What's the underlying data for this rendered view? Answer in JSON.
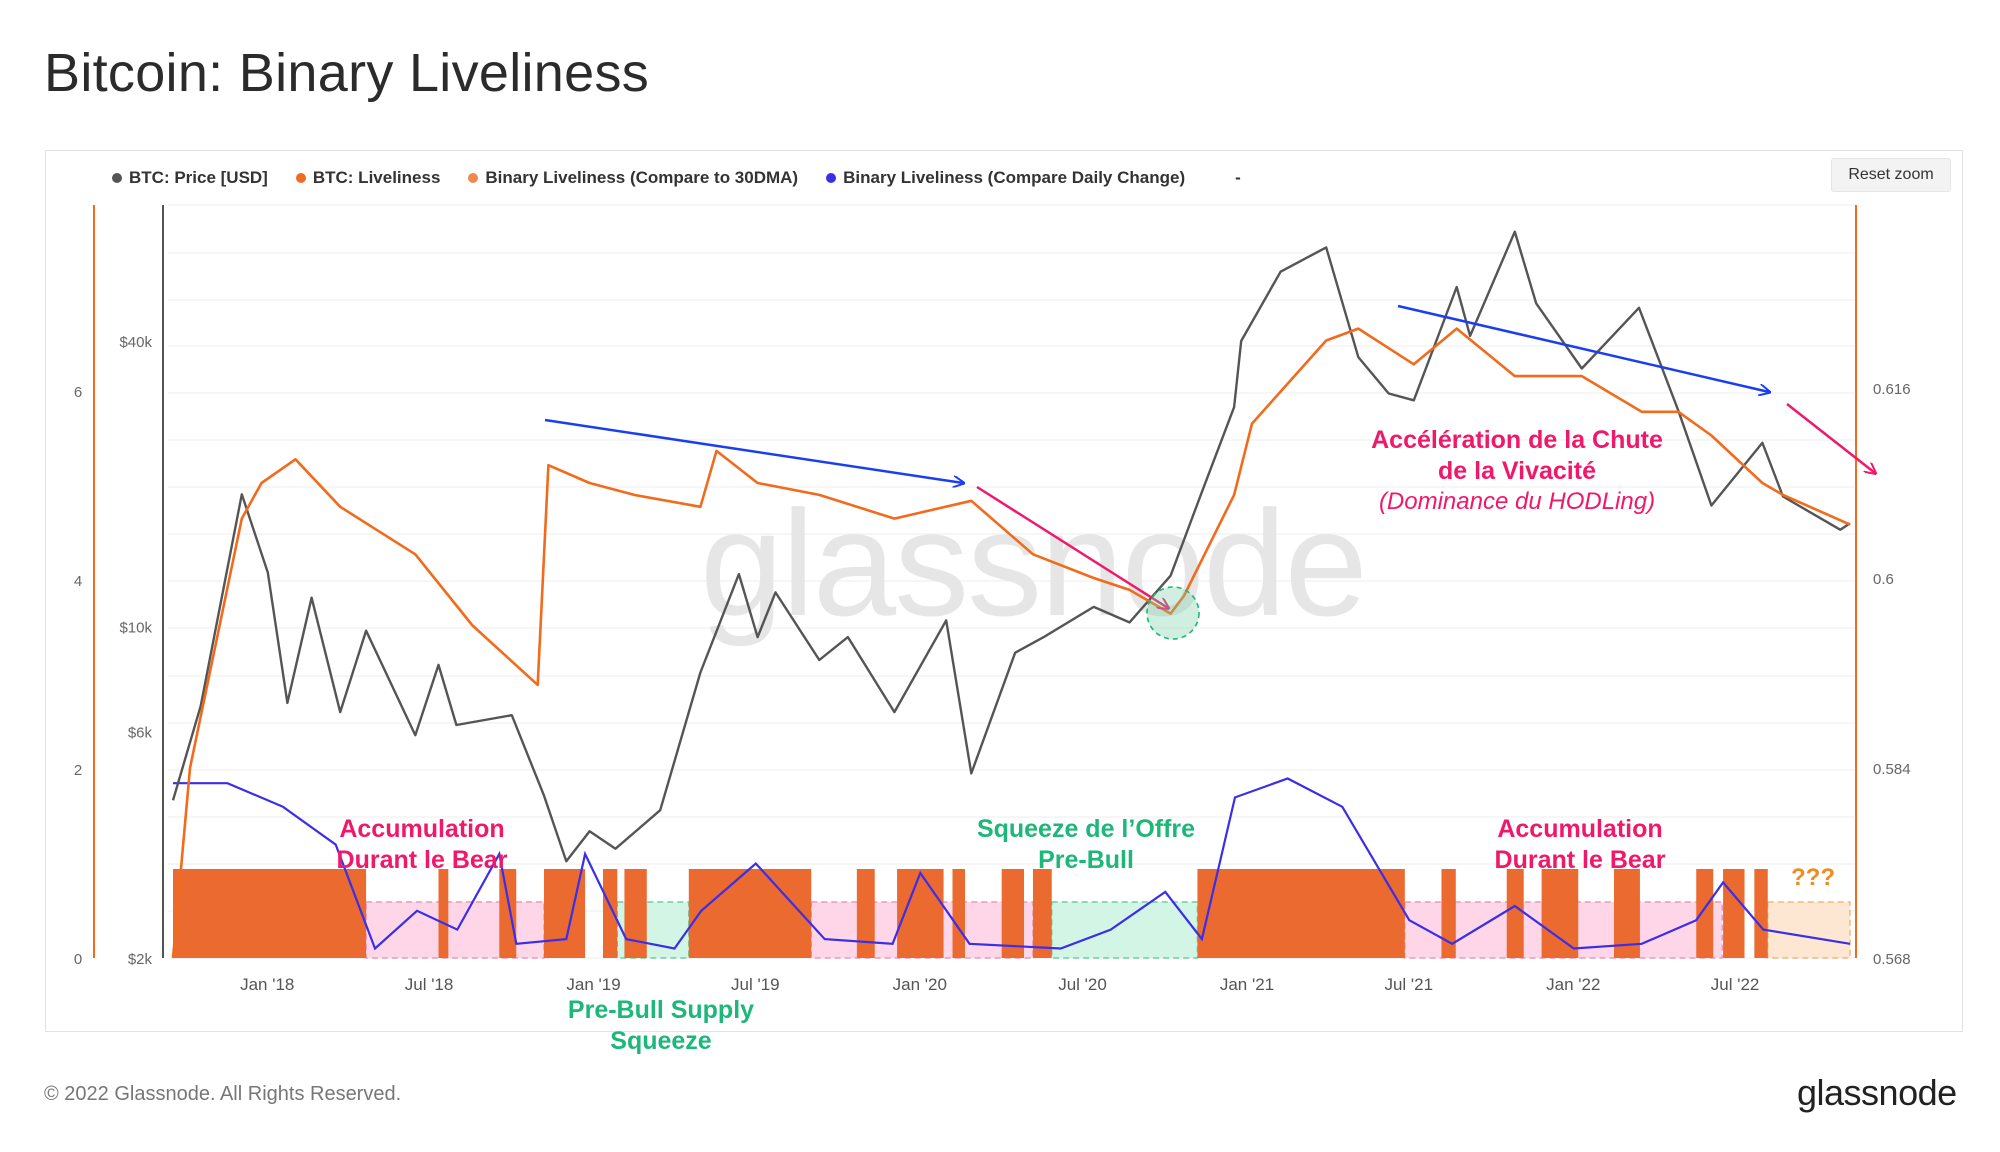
{
  "page": {
    "title": "Bitcoin: Binary Liveliness",
    "footer_copyright": "© 2022 Glassnode. All Rights Reserved.",
    "footer_logo": "glassnode",
    "watermark": "glassnode"
  },
  "toolbar": {
    "reset_zoom_label": "Reset zoom"
  },
  "legend": [
    {
      "label": "BTC: Price [USD]",
      "color": "#555555"
    },
    {
      "label": "BTC: Liveliness",
      "color": "#f26b1d"
    },
    {
      "label": "Binary Liveliness (Compare to 30DMA)",
      "color": "#f0884a"
    },
    {
      "label": "Binary Liveliness (Compare Daily Change)",
      "color": "#3a2ee8"
    },
    {
      "label": "-",
      "color": ""
    }
  ],
  "colors": {
    "price": "#555555",
    "liveliness": "#f26b1d",
    "binary_fill": "#eb6a30",
    "binary_line": "#3a2ee8",
    "accumulation_zone": "#ffd6e8",
    "squeeze_zone": "#d2f5e6",
    "unknown_zone": "#fde7d2",
    "annotation_pink": "#f0186b",
    "annotation_green": "#1db77a",
    "annotation_orange": "#f28a1c",
    "arrow_blue": "#1b3ef0"
  },
  "annotations": {
    "accumulation_1": [
      "Accumulation",
      "Durant le Bear"
    ],
    "pre_bull_squeeze": [
      "Pre-Bull Supply",
      "Squeeze"
    ],
    "squeeze_offre": [
      "Squeeze de l’Offre",
      "Pre-Bull"
    ],
    "acceleration": [
      "Accélération de la Chute",
      "de la Vivacité"
    ],
    "hodl": "(Dominance du HODLing)",
    "accumulation_2": [
      "Accumulation",
      "Durant le Bear"
    ],
    "unknown": "???"
  },
  "chart_data": {
    "type": "line",
    "x_ticks": [
      "Jan '18",
      "Jul '18",
      "Jan '19",
      "Jul '19",
      "Jan '20",
      "Jul '20",
      "Jan '21",
      "Jul '21",
      "Jan '22",
      "Jul '22"
    ],
    "x_range": [
      "2017-10-01",
      "2022-11-20"
    ],
    "y_axes": {
      "far_left": {
        "ticks": [
          "0",
          "2",
          "4",
          "6"
        ],
        "range": [
          0,
          8
        ],
        "series": "Binary Liveliness"
      },
      "price": {
        "ticks": [
          "$2k",
          "$6k",
          "$10k",
          "$40k"
        ],
        "range": [
          2000,
          70000
        ],
        "scale": "log",
        "series": "BTC: Price [USD]"
      },
      "right": {
        "ticks": [
          "0.568",
          "0.584",
          "0.6",
          "0.616"
        ],
        "range": [
          0.568,
          0.632
        ],
        "series": "BTC: Liveliness"
      }
    },
    "series": [
      {
        "name": "BTC: Price [USD]",
        "axis": "price",
        "points": [
          [
            "2017-10-01",
            4300
          ],
          [
            "2017-11-01",
            6800
          ],
          [
            "2017-12-17",
            19000
          ],
          [
            "2018-01-15",
            13000
          ],
          [
            "2018-02-06",
            6900
          ],
          [
            "2018-03-05",
            11500
          ],
          [
            "2018-04-06",
            6600
          ],
          [
            "2018-05-05",
            9800
          ],
          [
            "2018-06-29",
            5900
          ],
          [
            "2018-07-25",
            8300
          ],
          [
            "2018-08-14",
            6200
          ],
          [
            "2018-10-15",
            6500
          ],
          [
            "2018-11-20",
            4400
          ],
          [
            "2018-12-15",
            3200
          ],
          [
            "2019-01-10",
            3700
          ],
          [
            "2019-02-08",
            3400
          ],
          [
            "2019-03-30",
            4100
          ],
          [
            "2019-05-14",
            8000
          ],
          [
            "2019-06-26",
            12900
          ],
          [
            "2019-07-17",
            9500
          ],
          [
            "2019-08-06",
            11800
          ],
          [
            "2019-09-24",
            8500
          ],
          [
            "2019-10-26",
            9500
          ],
          [
            "2019-12-17",
            6600
          ],
          [
            "2020-02-13",
            10300
          ],
          [
            "2020-03-12",
            4900
          ],
          [
            "2020-04-30",
            8800
          ],
          [
            "2020-06-01",
            9500
          ],
          [
            "2020-07-27",
            11000
          ],
          [
            "2020-09-05",
            10200
          ],
          [
            "2020-10-21",
            12800
          ],
          [
            "2020-11-24",
            19000
          ],
          [
            "2020-12-31",
            29000
          ],
          [
            "2021-01-08",
            40000
          ],
          [
            "2021-02-21",
            56000
          ],
          [
            "2021-04-13",
            63000
          ],
          [
            "2021-05-19",
            37000
          ],
          [
            "2021-06-22",
            31000
          ],
          [
            "2021-07-20",
            30000
          ],
          [
            "2021-09-06",
            52000
          ],
          [
            "2021-09-21",
            41000
          ],
          [
            "2021-11-10",
            68000
          ],
          [
            "2021-12-04",
            48000
          ],
          [
            "2022-01-24",
            35000
          ],
          [
            "2022-03-29",
            47000
          ],
          [
            "2022-05-12",
            28500
          ],
          [
            "2022-06-18",
            18000
          ],
          [
            "2022-08-14",
            24400
          ],
          [
            "2022-09-06",
            18800
          ],
          [
            "2022-11-09",
            16000
          ],
          [
            "2022-11-20",
            16500
          ]
        ]
      },
      {
        "name": "BTC: Liveliness",
        "axis": "right",
        "points": [
          [
            "2017-10-01",
            0.568
          ],
          [
            "2017-10-20",
            0.584
          ],
          [
            "2017-12-17",
            0.605
          ],
          [
            "2018-01-08",
            0.608
          ],
          [
            "2018-02-15",
            0.61
          ],
          [
            "2018-04-06",
            0.606
          ],
          [
            "2018-06-29",
            0.602
          ],
          [
            "2018-09-01",
            0.596
          ],
          [
            "2018-11-13",
            0.591
          ],
          [
            "2018-11-25",
            0.6095
          ],
          [
            "2019-01-10",
            0.608
          ],
          [
            "2019-03-01",
            0.607
          ],
          [
            "2019-05-14",
            0.606
          ],
          [
            "2019-06-01",
            0.6107
          ],
          [
            "2019-07-17",
            0.608
          ],
          [
            "2019-09-24",
            0.607
          ],
          [
            "2019-12-17",
            0.605
          ],
          [
            "2020-03-12",
            0.6065
          ],
          [
            "2020-05-20",
            0.602
          ],
          [
            "2020-07-27",
            0.6
          ],
          [
            "2020-09-05",
            0.599
          ],
          [
            "2020-10-21",
            0.597
          ],
          [
            "2020-11-05",
            0.5985
          ],
          [
            "2020-12-31",
            0.607
          ],
          [
            "2021-01-20",
            0.613
          ],
          [
            "2021-04-13",
            0.62
          ],
          [
            "2021-05-19",
            0.621
          ],
          [
            "2021-07-20",
            0.618
          ],
          [
            "2021-09-06",
            0.621
          ],
          [
            "2021-11-10",
            0.617
          ],
          [
            "2022-01-24",
            0.617
          ],
          [
            "2022-04-01",
            0.614
          ],
          [
            "2022-05-12",
            0.614
          ],
          [
            "2022-06-18",
            0.612
          ],
          [
            "2022-08-14",
            0.608
          ],
          [
            "2022-09-06",
            0.607
          ],
          [
            "2022-11-20",
            0.6045
          ]
        ]
      },
      {
        "name": "Binary Liveliness (Compare to 30DMA)",
        "axis": "far_left",
        "type": "area",
        "segments": [
          [
            "2017-10-01",
            "2018-05-05"
          ],
          [
            "2018-07-25",
            "2018-08-05"
          ],
          [
            "2018-10-01",
            "2018-10-20"
          ],
          [
            "2018-11-20",
            "2019-01-05"
          ],
          [
            "2019-01-25",
            "2019-02-10"
          ],
          [
            "2019-02-18",
            "2019-03-15"
          ],
          [
            "2019-05-01",
            "2019-09-15"
          ],
          [
            "2019-11-05",
            "2019-11-25"
          ],
          [
            "2019-12-20",
            "2020-02-10"
          ],
          [
            "2020-02-20",
            "2020-03-05"
          ],
          [
            "2020-04-15",
            "2020-05-10"
          ],
          [
            "2020-05-20",
            "2020-06-10"
          ],
          [
            "2020-11-20",
            "2021-07-10"
          ],
          [
            "2021-08-20",
            "2021-09-05"
          ],
          [
            "2021-11-01",
            "2021-11-20"
          ],
          [
            "2021-12-10",
            "2022-01-20"
          ],
          [
            "2022-03-01",
            "2022-03-30"
          ],
          [
            "2022-06-01",
            "2022-06-20"
          ],
          [
            "2022-07-01",
            "2022-07-25"
          ],
          [
            "2022-08-05",
            "2022-08-20"
          ]
        ]
      },
      {
        "name": "Binary Liveliness (Compare Daily Change)",
        "axis": "far_left",
        "points": [
          [
            "2017-10-01",
            1.85
          ],
          [
            "2017-12-01",
            1.85
          ],
          [
            "2018-02-01",
            1.6
          ],
          [
            "2018-04-01",
            1.2
          ],
          [
            "2018-05-15",
            0.1
          ],
          [
            "2018-07-01",
            0.5
          ],
          [
            "2018-08-15",
            0.3
          ],
          [
            "2018-10-01",
            1.1
          ],
          [
            "2018-10-20",
            0.15
          ],
          [
            "2018-12-15",
            0.2
          ],
          [
            "2019-01-05",
            1.1
          ],
          [
            "2019-02-20",
            0.2
          ],
          [
            "2019-04-15",
            0.1
          ],
          [
            "2019-05-15",
            0.5
          ],
          [
            "2019-07-15",
            1.0
          ],
          [
            "2019-09-30",
            0.2
          ],
          [
            "2019-12-15",
            0.15
          ],
          [
            "2020-01-15",
            0.9
          ],
          [
            "2020-03-10",
            0.15
          ],
          [
            "2020-06-20",
            0.1
          ],
          [
            "2020-08-15",
            0.3
          ],
          [
            "2020-10-15",
            0.7
          ],
          [
            "2020-11-25",
            0.2
          ],
          [
            "2021-01-01",
            1.7
          ],
          [
            "2021-03-01",
            1.9
          ],
          [
            "2021-05-01",
            1.6
          ],
          [
            "2021-07-15",
            0.4
          ],
          [
            "2021-09-01",
            0.15
          ],
          [
            "2021-11-10",
            0.55
          ],
          [
            "2022-01-15",
            0.1
          ],
          [
            "2022-04-01",
            0.15
          ],
          [
            "2022-06-01",
            0.4
          ],
          [
            "2022-07-01",
            0.8
          ],
          [
            "2022-08-15",
            0.3
          ],
          [
            "2022-11-20",
            0.15
          ]
        ]
      }
    ],
    "zones": [
      {
        "type": "accumulation",
        "start": "2018-05-05",
        "end": "2018-11-20"
      },
      {
        "type": "squeeze",
        "start": "2019-02-10",
        "end": "2019-05-01"
      },
      {
        "type": "accumulation",
        "start": "2019-09-15",
        "end": "2020-05-20"
      },
      {
        "type": "squeeze",
        "start": "2020-06-10",
        "end": "2020-11-20"
      },
      {
        "type": "accumulation",
        "start": "2021-07-10",
        "end": "2022-06-30"
      },
      {
        "type": "unknown",
        "start": "2022-08-20",
        "end": "2022-11-20"
      }
    ],
    "grid": true,
    "legend_position": "top-left"
  }
}
